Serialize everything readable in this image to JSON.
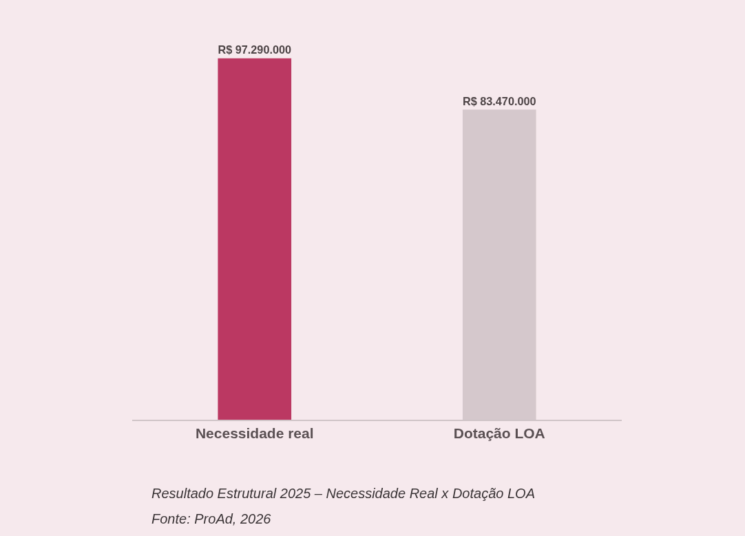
{
  "chart_data": {
    "type": "bar",
    "categories": [
      "Necessidade real",
      "Dotação LOA"
    ],
    "values": [
      97290000,
      83470000
    ],
    "colors": [
      "#bb3862",
      "#d5c8cc"
    ],
    "value_labels": [
      "R$ 97.290.000",
      "R$ 83.470.000"
    ],
    "legend": false,
    "annotations": [
      "Resultado Estrutural 2025 – Necessidade Real x Dotação LOA",
      "Fonte: ProAd, 2026"
    ]
  }
}
